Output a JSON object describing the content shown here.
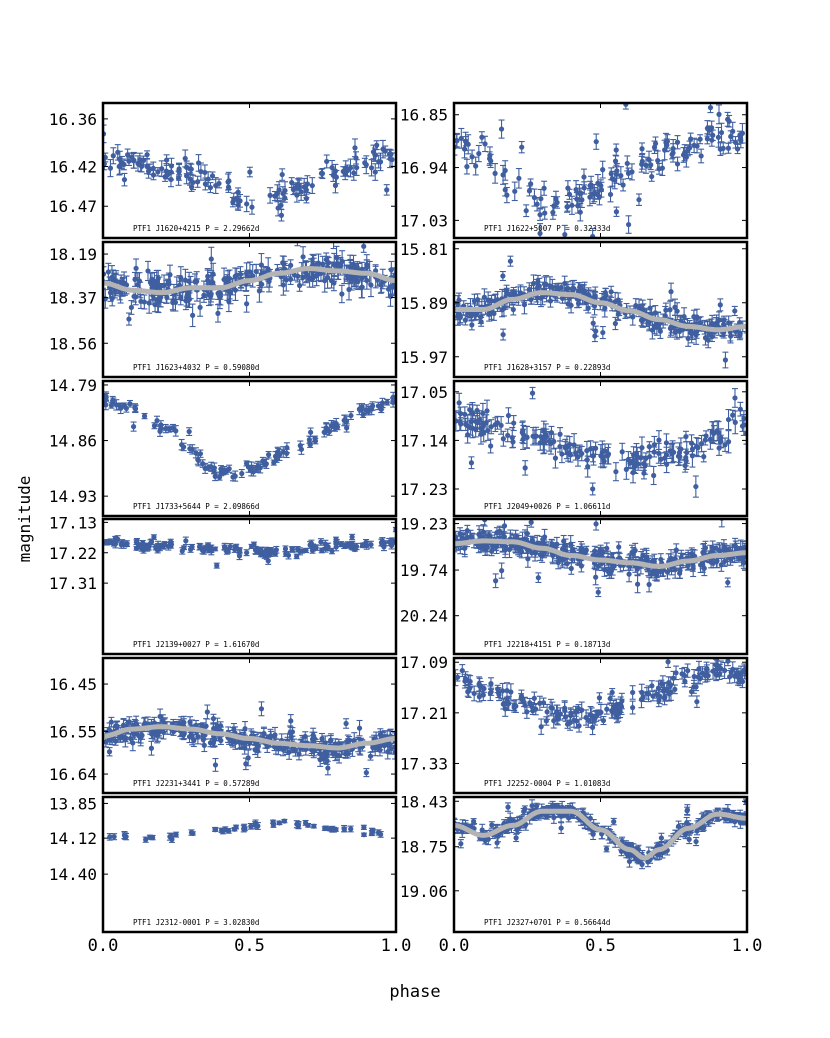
{
  "figure": {
    "xlabel": "phase",
    "ylabel": "magnitude",
    "x_ticks": [
      "0.0",
      "0.5",
      "1.0"
    ],
    "colors": {
      "points": "#3f5fa0",
      "trend": "#b4b4b4",
      "frame": "#000000"
    }
  },
  "chart_data": [
    {
      "type": "scatter",
      "title": "PTF1 J1620+4215 P = 2.29662d",
      "xlabel": "phase",
      "ylabel": "magnitude",
      "xlim": [
        0.0,
        1.0
      ],
      "ylim": [
        16.51,
        16.34
      ],
      "y_inverted": true,
      "yticks": [
        "16.36",
        "16.42",
        "16.47"
      ],
      "has_trend": false,
      "light_curve": {
        "knots_phase": [
          0.0,
          0.1,
          0.2,
          0.3,
          0.4,
          0.5,
          0.55,
          0.6,
          0.7,
          0.8,
          0.9,
          1.0
        ],
        "knots_mag": [
          16.41,
          16.415,
          16.425,
          16.43,
          16.44,
          16.47,
          16.462,
          16.455,
          16.445,
          16.425,
          16.415,
          16.41
        ],
        "scatter": 0.012,
        "n_points": 130,
        "error_bar": 0.008
      }
    },
    {
      "type": "scatter",
      "title": "PTF1 J1622+5007 P = 0.32333d",
      "xlabel": "phase",
      "ylabel": "magnitude",
      "xlim": [
        0.0,
        1.0
      ],
      "ylim": [
        17.06,
        16.83
      ],
      "y_inverted": true,
      "yticks": [
        "16.85",
        "16.94",
        "17.03"
      ],
      "has_trend": false,
      "light_curve": {
        "knots_phase": [
          0.0,
          0.1,
          0.2,
          0.3,
          0.4,
          0.5,
          0.6,
          0.7,
          0.8,
          0.9,
          1.0
        ],
        "knots_mag": [
          16.9,
          16.92,
          16.97,
          17.0,
          16.99,
          16.97,
          16.94,
          16.92,
          16.9,
          16.88,
          16.9
        ],
        "scatter": 0.025,
        "n_points": 140,
        "error_bar": 0.012
      }
    },
    {
      "type": "scatter",
      "title": "PTF1 J1623+4032 P = 0.59080d",
      "xlabel": "phase",
      "ylabel": "magnitude",
      "xlim": [
        0.0,
        1.0
      ],
      "ylim": [
        18.7,
        18.14
      ],
      "y_inverted": true,
      "yticks": [
        "18.19",
        "18.37",
        "18.56"
      ],
      "has_trend": true,
      "light_curve": {
        "knots_phase": [
          0.0,
          0.1,
          0.2,
          0.3,
          0.4,
          0.5,
          0.6,
          0.7,
          0.8,
          0.9,
          1.0
        ],
        "knots_mag": [
          18.31,
          18.34,
          18.35,
          18.33,
          18.33,
          18.3,
          18.27,
          18.25,
          18.26,
          18.27,
          18.3
        ],
        "scatter": 0.05,
        "n_points": 260,
        "error_bar": 0.035
      }
    },
    {
      "type": "scatter",
      "title": "PTF1 J1628+3157 P = 0.22893d",
      "xlabel": "phase",
      "ylabel": "magnitude",
      "xlim": [
        0.0,
        1.0
      ],
      "ylim": [
        16.0,
        15.8
      ],
      "y_inverted": true,
      "yticks": [
        "15.81",
        "15.89",
        "15.97"
      ],
      "has_trend": true,
      "light_curve": {
        "knots_phase": [
          0.0,
          0.1,
          0.2,
          0.3,
          0.4,
          0.5,
          0.6,
          0.7,
          0.8,
          0.9,
          1.0
        ],
        "knots_mag": [
          15.9,
          15.9,
          15.885,
          15.875,
          15.878,
          15.89,
          15.902,
          15.915,
          15.925,
          15.93,
          15.925
        ],
        "scatter": 0.014,
        "n_points": 260,
        "error_bar": 0.01
      }
    },
    {
      "type": "scatter",
      "title": "PTF1 J1733+5644 P = 2.09866d",
      "xlabel": "phase",
      "ylabel": "magnitude",
      "xlim": [
        0.0,
        1.0
      ],
      "ylim": [
        14.955,
        14.785
      ],
      "y_inverted": true,
      "yticks": [
        "14.79",
        "14.86",
        "14.93"
      ],
      "has_trend": false,
      "light_curve": {
        "knots_phase": [
          0.0,
          0.1,
          0.2,
          0.3,
          0.35,
          0.4,
          0.45,
          0.5,
          0.6,
          0.65,
          0.7,
          0.8,
          0.9,
          1.0
        ],
        "knots_mag": [
          14.81,
          14.82,
          14.84,
          14.87,
          14.89,
          14.9,
          14.905,
          14.895,
          14.88,
          14.865,
          14.86,
          14.84,
          14.82,
          14.81
        ],
        "scatter": 0.006,
        "n_points": 120,
        "error_bar": 0.005
      }
    },
    {
      "type": "scatter",
      "title": "PTF1 J2049+0026 P = 1.06611d",
      "xlabel": "phase",
      "ylabel": "magnitude",
      "xlim": [
        0.0,
        1.0
      ],
      "ylim": [
        17.28,
        17.03
      ],
      "y_inverted": true,
      "yticks": [
        "17.05",
        "17.14",
        "17.23"
      ],
      "has_trend": false,
      "light_curve": {
        "knots_phase": [
          0.0,
          0.1,
          0.2,
          0.3,
          0.4,
          0.5,
          0.6,
          0.7,
          0.8,
          0.9,
          1.0
        ],
        "knots_mag": [
          17.1,
          17.11,
          17.12,
          17.14,
          17.16,
          17.17,
          17.18,
          17.17,
          17.16,
          17.13,
          17.11
        ],
        "scatter": 0.022,
        "n_points": 170,
        "error_bar": 0.015
      }
    },
    {
      "type": "scatter",
      "title": "PTF1 J2139+0027 P = 1.61670d",
      "xlabel": "phase",
      "ylabel": "magnitude",
      "xlim": [
        0.0,
        1.0
      ],
      "ylim": [
        17.52,
        17.12
      ],
      "y_inverted": true,
      "yticks": [
        "17.13",
        "17.22",
        "17.31"
      ],
      "has_trend": false,
      "light_curve": {
        "knots_phase": [
          0.0,
          0.2,
          0.4,
          0.6,
          0.8,
          1.0
        ],
        "knots_mag": [
          17.19,
          17.2,
          17.21,
          17.22,
          17.2,
          17.19
        ],
        "scatter": 0.012,
        "n_points": 150,
        "error_bar": 0.008
      }
    },
    {
      "type": "scatter",
      "title": "PTF1 J2218+4151 P = 0.18713d",
      "xlabel": "phase",
      "ylabel": "magnitude",
      "xlim": [
        0.0,
        1.0
      ],
      "ylim": [
        20.66,
        19.18
      ],
      "y_inverted": true,
      "yticks": [
        "19.23",
        "19.74",
        "20.24"
      ],
      "has_trend": true,
      "light_curve": {
        "knots_phase": [
          0.0,
          0.1,
          0.2,
          0.3,
          0.4,
          0.5,
          0.6,
          0.7,
          0.8,
          0.9,
          1.0
        ],
        "knots_mag": [
          19.45,
          19.42,
          19.43,
          19.5,
          19.58,
          19.63,
          19.66,
          19.7,
          19.64,
          19.58,
          19.55
        ],
        "scatter": 0.1,
        "n_points": 320,
        "error_bar": 0.07
      }
    },
    {
      "type": "scatter",
      "title": "PTF1 J2231+3441 P = 0.57289d",
      "xlabel": "phase",
      "ylabel": "magnitude",
      "xlim": [
        0.0,
        1.0
      ],
      "ylim": [
        16.68,
        16.395
      ],
      "y_inverted": true,
      "yticks": [
        "16.45",
        "16.55",
        "16.64"
      ],
      "has_trend": true,
      "light_curve": {
        "knots_phase": [
          0.0,
          0.1,
          0.2,
          0.3,
          0.4,
          0.5,
          0.6,
          0.7,
          0.8,
          0.9,
          1.0
        ],
        "knots_mag": [
          16.56,
          16.545,
          16.54,
          16.545,
          16.555,
          16.565,
          16.575,
          16.58,
          16.585,
          16.575,
          16.565
        ],
        "scatter": 0.018,
        "n_points": 300,
        "error_bar": 0.012
      }
    },
    {
      "type": "scatter",
      "title": "PTF1 J2252-0004 P = 1.01083d",
      "xlabel": "phase",
      "ylabel": "magnitude",
      "xlim": [
        0.0,
        1.0
      ],
      "ylim": [
        17.4,
        17.08
      ],
      "y_inverted": true,
      "yticks": [
        "17.09",
        "17.21",
        "17.33"
      ],
      "has_trend": false,
      "light_curve": {
        "knots_phase": [
          0.0,
          0.1,
          0.2,
          0.3,
          0.4,
          0.5,
          0.6,
          0.7,
          0.8,
          0.9,
          1.0
        ],
        "knots_mag": [
          17.13,
          17.15,
          17.18,
          17.2,
          17.22,
          17.22,
          17.19,
          17.16,
          17.13,
          17.11,
          17.12
        ],
        "scatter": 0.018,
        "n_points": 170,
        "error_bar": 0.014
      }
    },
    {
      "type": "scatter",
      "title": "PTF1 J2312-0001 P = 3.02830d",
      "xlabel": "phase",
      "ylabel": "magnitude",
      "xlim": [
        0.0,
        1.0
      ],
      "ylim": [
        14.85,
        13.8
      ],
      "y_inverted": true,
      "yticks": [
        "13.85",
        "14.12",
        "14.40"
      ],
      "has_trend": false,
      "light_curve": {
        "knots_phase": [
          0.0,
          0.2,
          0.4,
          0.6,
          0.8,
          1.0
        ],
        "knots_mag": [
          14.1,
          14.12,
          14.05,
          14.0,
          14.05,
          14.09
        ],
        "scatter": 0.02,
        "n_points": 55,
        "error_bar": 0.02
      }
    },
    {
      "type": "scatter",
      "title": "PTF1 J2327+0701 P = 0.56644d",
      "xlabel": "phase",
      "ylabel": "magnitude",
      "xlim": [
        0.0,
        1.0
      ],
      "ylim": [
        19.35,
        18.4
      ],
      "y_inverted": true,
      "yticks": [
        "18.43",
        "18.75",
        "19.06"
      ],
      "has_trend": true,
      "light_curve": {
        "knots_phase": [
          0.0,
          0.1,
          0.2,
          0.3,
          0.4,
          0.5,
          0.6,
          0.65,
          0.7,
          0.8,
          0.9,
          1.0
        ],
        "knots_mag": [
          18.6,
          18.67,
          18.6,
          18.5,
          18.5,
          18.63,
          18.77,
          18.83,
          18.77,
          18.62,
          18.52,
          18.55
        ],
        "scatter": 0.035,
        "n_points": 300,
        "error_bar": 0.03
      }
    }
  ]
}
